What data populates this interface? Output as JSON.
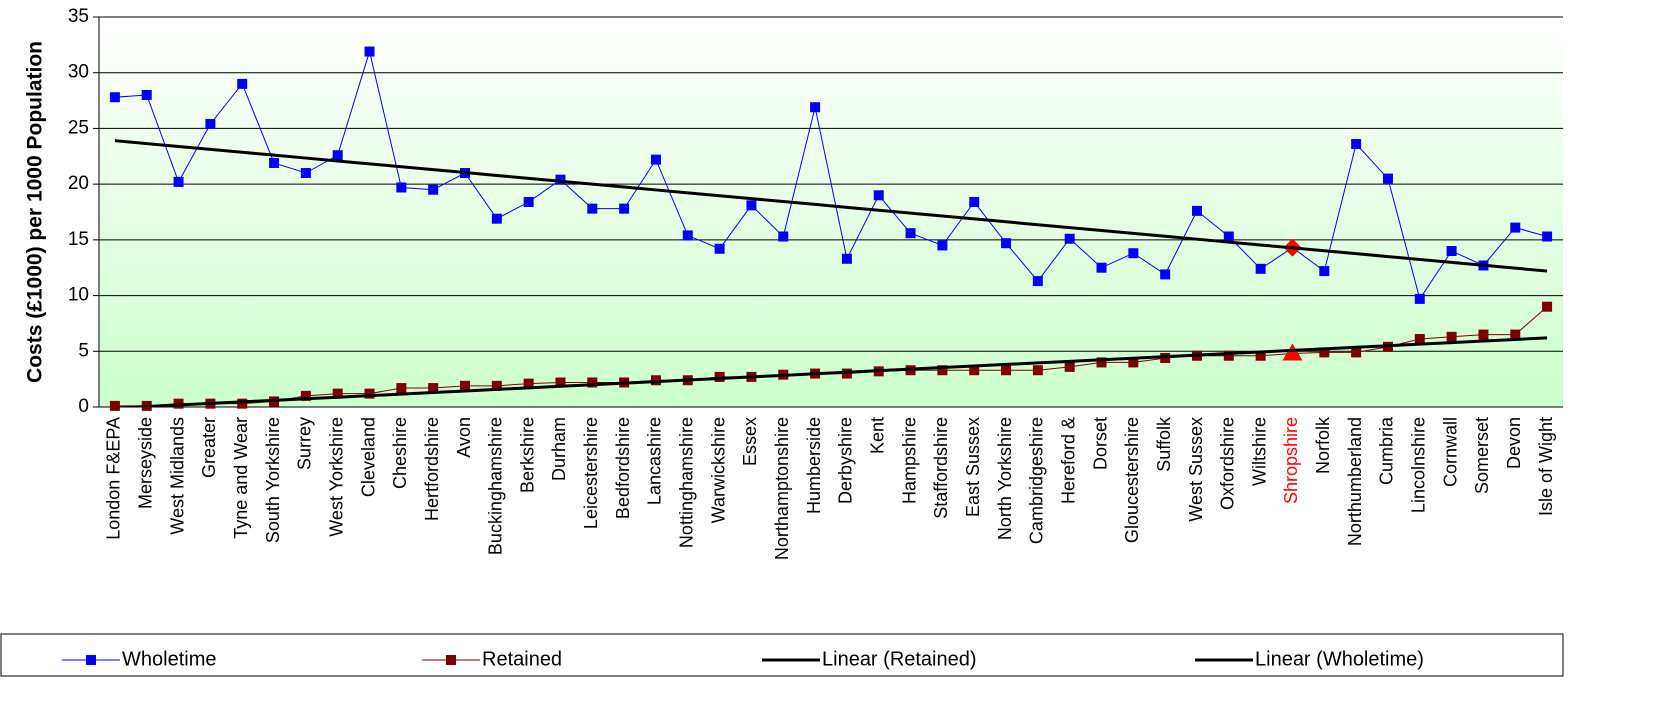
{
  "chart_data": {
    "type": "line",
    "y_label": "Costs (£1000) per 1000 Population",
    "categories": [
      "London F&EPA",
      "Merseyside",
      "West Midlands",
      "Greater",
      "Tyne and Wear",
      "South Yorkshire",
      "Surrey",
      "West Yorkshire",
      "Cleveland",
      "Cheshire",
      "Hertfordshire",
      "Avon",
      "Buckinghamshire",
      "Berkshire",
      "Durham",
      "Leicestershire",
      "Bedfordshire",
      "Lancashire",
      "Nottinghamshire",
      "Warwickshire",
      "Essex",
      "Northamptonshire",
      "Humberside",
      "Derbyshire",
      "Kent",
      "Hampshire",
      "Staffordshire",
      "East Sussex",
      "North Yorkshire",
      "Cambridgeshire",
      "Hereford &",
      "Dorset",
      "Gloucestershire",
      "Suffolk",
      "West Sussex",
      "Oxfordshire",
      "Wiltshire",
      "Shropshire",
      "Norfolk",
      "Northumberland",
      "Cumbria",
      "Lincolnshire",
      "Cornwall",
      "Somerset",
      "Devon",
      "Isle of Wight"
    ],
    "highlight": "Shropshire",
    "highlight_color": "#ff0000",
    "series": [
      {
        "name": "Wholetime",
        "color": "#0000ff",
        "marker": "square",
        "width": 1,
        "values": [
          27.8,
          28,
          20.2,
          25.4,
          29,
          21.9,
          21,
          22.6,
          31.9,
          19.7,
          19.5,
          21,
          16.9,
          18.4,
          20.4,
          17.8,
          17.8,
          22.2,
          15.4,
          14.2,
          18.1,
          15.3,
          26.9,
          13.3,
          19,
          15.6,
          14.5,
          18.4,
          14.7,
          11.3,
          15.1,
          12.5,
          13.8,
          11.9,
          17.6,
          15.3,
          12.4,
          14.3,
          12.2,
          23.6,
          20.5,
          9.7,
          14,
          12.7,
          16.1,
          15.3
        ]
      },
      {
        "name": "Retained",
        "color": "#800000",
        "marker": "square",
        "width": 1,
        "values": [
          0.1,
          0.1,
          0.3,
          0.3,
          0.3,
          0.5,
          1,
          1.2,
          1.2,
          1.7,
          1.7,
          1.9,
          1.9,
          2.1,
          2.2,
          2.2,
          2.2,
          2.4,
          2.4,
          2.7,
          2.7,
          2.9,
          3,
          3,
          3.2,
          3.3,
          3.3,
          3.3,
          3.3,
          3.3,
          3.6,
          4,
          4,
          4.4,
          4.6,
          4.6,
          4.6,
          4.8,
          4.9,
          4.9,
          5.4,
          6.1,
          6.3,
          6.5,
          6.5,
          9
        ]
      },
      {
        "name": "Linear (Retained)",
        "color": "#000000",
        "marker": "none",
        "width": 3,
        "values": [
          -0.1,
          0.04,
          0.18,
          0.32,
          0.46,
          0.6,
          0.74,
          0.88,
          1.02,
          1.16,
          1.3,
          1.44,
          1.58,
          1.72,
          1.86,
          2,
          2.14,
          2.28,
          2.42,
          2.56,
          2.7,
          2.84,
          2.98,
          3.12,
          3.26,
          3.4,
          3.54,
          3.68,
          3.82,
          3.96,
          4.1,
          4.24,
          4.38,
          4.52,
          4.66,
          4.8,
          4.94,
          5.08,
          5.22,
          5.36,
          5.5,
          5.64,
          5.78,
          5.92,
          6.06,
          6.2
        ]
      },
      {
        "name": "Linear (Wholetime)",
        "color": "#000000",
        "marker": "none",
        "width": 3,
        "values": [
          23.9,
          23.64,
          23.38,
          23.12,
          22.86,
          22.6,
          22.34,
          22.08,
          21.82,
          21.56,
          21.3,
          21.04,
          20.78,
          20.52,
          20.26,
          20,
          19.74,
          19.48,
          19.22,
          18.96,
          18.7,
          18.44,
          18.18,
          17.92,
          17.66,
          17.4,
          17.14,
          16.88,
          16.62,
          16.36,
          16.1,
          15.84,
          15.58,
          15.32,
          15.06,
          14.8,
          14.54,
          14.28,
          14.02,
          13.76,
          13.5,
          13.24,
          12.98,
          12.72,
          12.46,
          12.2
        ]
      }
    ],
    "ylim": [
      0,
      35
    ],
    "yticks": [
      0,
      5,
      10,
      15,
      20,
      25,
      30,
      35
    ],
    "grid": true,
    "legend": "bottom"
  }
}
